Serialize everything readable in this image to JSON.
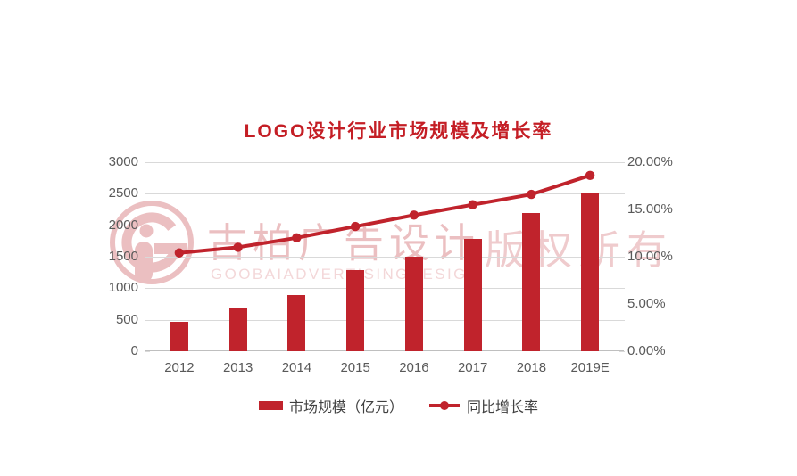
{
  "title": "LOGO设计行业市场规模及增长率",
  "colors": {
    "title_red": "#c41e25",
    "series_red": "#c0232c",
    "axis_text": "#595959",
    "legend_text": "#404040",
    "gridline": "#d9d9d9",
    "baseline": "#bfbfbf",
    "watermark_pink": "#d98085",
    "watermark_pink_light": "#e8b0b3",
    "background": "#ffffff"
  },
  "chart_data": {
    "type": "bar+line combo",
    "title": "LOGO设计行业市场规模及增长率",
    "categories": [
      "2012",
      "2013",
      "2014",
      "2015",
      "2016",
      "2017",
      "2018",
      "2019E"
    ],
    "series": [
      {
        "name": "市场规模（亿元）",
        "type": "bar",
        "axis": "left",
        "values": [
          470,
          680,
          890,
          1290,
          1500,
          1790,
          2200,
          2500
        ]
      },
      {
        "name": "同比增长率",
        "type": "line",
        "axis": "right",
        "values_pct": [
          10.4,
          11.0,
          12.0,
          13.2,
          14.4,
          15.5,
          16.6,
          18.6
        ]
      }
    ],
    "left_axis": {
      "min": 0,
      "max": 3000,
      "step": 500,
      "ticks": [
        "0",
        "500",
        "1000",
        "1500",
        "2000",
        "2500",
        "3000"
      ]
    },
    "right_axis": {
      "min": 0,
      "max": 20,
      "step": 5,
      "ticks": [
        "0.00%",
        "5.00%",
        "10.00%",
        "15.00%",
        "20.00%"
      ]
    },
    "grid": true,
    "legend_position": "bottom"
  },
  "legend": {
    "items": [
      {
        "label": "市场规模（亿元）",
        "marker": "bar-swatch"
      },
      {
        "label": "同比增长率",
        "marker": "line-dot-swatch"
      }
    ]
  },
  "watermark": {
    "logo": "goobai-circle-person-logo",
    "cjk_text": "古柏广告设计",
    "latin_text": "GOOBAIADVERTISINGDESIGN",
    "rights_text": "版权所有"
  }
}
